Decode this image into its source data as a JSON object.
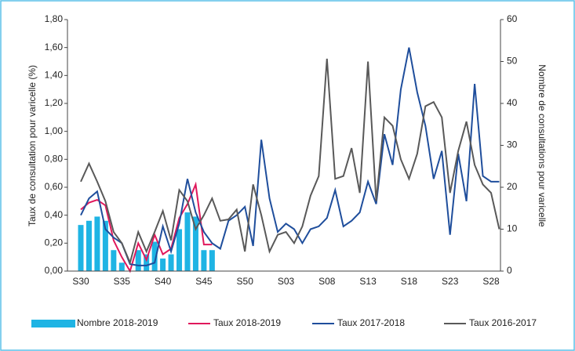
{
  "chart_data": {
    "type": "combo",
    "y_label": "Taux de consultation pour varicelle (%)",
    "y2_label": "Nombre de consultations pour varicelle",
    "categories": [
      "S30",
      null,
      null,
      null,
      null,
      "S35",
      null,
      null,
      null,
      null,
      "S40",
      null,
      null,
      null,
      null,
      "S45",
      null,
      null,
      null,
      null,
      "S50",
      null,
      null,
      null,
      null,
      "S03",
      null,
      null,
      null,
      null,
      "S08",
      null,
      null,
      null,
      null,
      "S13",
      null,
      null,
      null,
      null,
      "S18",
      null,
      null,
      null,
      null,
      "S23",
      null,
      null,
      null,
      null,
      "S28",
      null
    ],
    "ylim": [
      0,
      1.8
    ],
    "yticks": [
      {
        "value": 0,
        "label": "0,00"
      },
      {
        "value": 0.2,
        "label": "0,20"
      },
      {
        "value": 0.4,
        "label": "0,40"
      },
      {
        "value": 0.6,
        "label": "0,60"
      },
      {
        "value": 0.8,
        "label": "0,80"
      },
      {
        "value": 1.0,
        "label": "1,00"
      },
      {
        "value": 1.2,
        "label": "1,20"
      },
      {
        "value": 1.4,
        "label": "1,40"
      },
      {
        "value": 1.6,
        "label": "1,60"
      },
      {
        "value": 1.8,
        "label": "1,80"
      }
    ],
    "y2lim": [
      0,
      60
    ],
    "y2ticks": [
      0,
      10,
      20,
      30,
      40,
      50,
      60
    ],
    "series": [
      {
        "name": "Nombre 2018-2019",
        "type": "bar",
        "axis": "y2",
        "color": "#1fb4e4",
        "values": [
          11,
          12,
          13,
          12,
          5,
          2,
          0,
          5,
          4,
          7,
          3,
          4,
          10,
          14,
          13,
          5,
          5,
          null,
          null,
          null,
          null,
          null,
          null,
          null,
          null,
          null,
          null,
          null,
          null,
          null,
          null,
          null,
          null,
          null,
          null,
          null,
          null,
          null,
          null,
          null,
          null,
          null,
          null,
          null,
          null,
          null,
          null,
          null,
          null,
          null,
          null,
          null
        ]
      },
      {
        "name": "Taux 2018-2019",
        "type": "line",
        "color": "#e0185c",
        "values": [
          0.44,
          0.49,
          0.51,
          0.47,
          0.22,
          0.1,
          0.0,
          0.2,
          0.08,
          0.26,
          0.12,
          0.16,
          0.38,
          0.48,
          0.62,
          0.19,
          0.19,
          null,
          null,
          null,
          null,
          null,
          null,
          null,
          null,
          null,
          null,
          null,
          null,
          null,
          null,
          null,
          null,
          null,
          null,
          null,
          null,
          null,
          null,
          null,
          null,
          null,
          null,
          null,
          null,
          null,
          null,
          null,
          null,
          null,
          null,
          null
        ]
      },
      {
        "name": "Taux 2017-2018",
        "type": "line",
        "color": "#1f4e9c",
        "values": [
          0.4,
          0.52,
          0.57,
          0.3,
          0.24,
          0.2,
          0.05,
          0.04,
          0.04,
          0.06,
          0.32,
          0.14,
          0.34,
          0.66,
          0.42,
          0.28,
          0.2,
          0.16,
          0.36,
          0.4,
          0.46,
          0.18,
          0.94,
          0.52,
          0.28,
          0.34,
          0.3,
          0.2,
          0.3,
          0.32,
          0.38,
          0.58,
          0.32,
          0.36,
          0.42,
          0.64,
          0.48,
          0.98,
          0.76,
          1.3,
          1.6,
          1.28,
          1.04,
          0.66,
          0.86,
          0.26,
          0.84,
          0.5,
          1.34,
          0.68,
          0.64,
          0.64
        ]
      },
      {
        "name": "Taux 2016-2017",
        "type": "line",
        "color": "#595959",
        "values": [
          0.64,
          0.77,
          0.64,
          0.5,
          0.28,
          0.2,
          0.06,
          0.28,
          0.14,
          0.28,
          0.43,
          0.22,
          0.58,
          0.5,
          0.3,
          0.4,
          0.52,
          0.36,
          0.37,
          0.44,
          0.14,
          0.62,
          0.4,
          0.14,
          0.26,
          0.28,
          0.2,
          0.32,
          0.54,
          0.68,
          1.52,
          0.66,
          0.68,
          0.88,
          0.56,
          1.5,
          0.5,
          1.1,
          1.04,
          0.8,
          0.66,
          0.84,
          1.18,
          1.21,
          1.1,
          0.56,
          0.86,
          1.07,
          0.76,
          0.62,
          0.56,
          0.3
        ]
      }
    ]
  }
}
